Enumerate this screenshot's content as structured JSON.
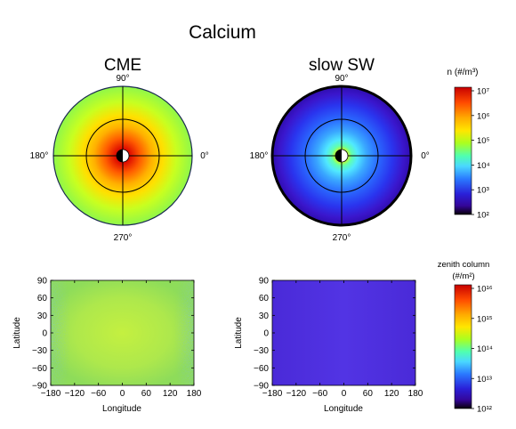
{
  "figure": {
    "title": "Calcium"
  },
  "polar_panels": [
    {
      "title": "CME",
      "angle_labels": {
        "top": "90°",
        "left": "180°",
        "right": "0°",
        "bottom": "270°"
      },
      "scenario": "CME"
    },
    {
      "title": "slow SW",
      "angle_labels": {
        "top": "90°",
        "left": "180°",
        "right": "0°",
        "bottom": "270°"
      },
      "scenario": "slow SW"
    }
  ],
  "map_panels": [
    {
      "xlabel": "Longitude",
      "ylabel": "Latitude",
      "scenario": "CME"
    },
    {
      "xlabel": "Longitude",
      "ylabel": "Latitude",
      "scenario": "slow SW"
    }
  ],
  "colorbars": [
    {
      "title": "n (#/m³)",
      "tick_labels": [
        "10⁷",
        "10⁶",
        "10⁵",
        "10⁴",
        "10³",
        "10²"
      ]
    },
    {
      "title_line1": "zenith column",
      "title_line2": "(#/m²)",
      "tick_labels": [
        "10¹⁶",
        "10¹⁵",
        "10¹⁴",
        "10¹³",
        "10¹²"
      ]
    }
  ],
  "chart_data": [
    {
      "type": "heatmap",
      "title": "CME",
      "xlabel": "Longitude",
      "ylabel": "Latitude",
      "x_ticks": [
        -180,
        -120,
        -60,
        0,
        60,
        120,
        180
      ],
      "y_ticks": [
        90,
        60,
        30,
        0,
        -30,
        -60,
        -90
      ],
      "xlim": [
        -180,
        180
      ],
      "ylim": [
        -90,
        90
      ],
      "colorbar_range": [
        "10¹²",
        "10¹⁶"
      ],
      "colormap": [
        "#1a0028",
        "#3a10c8",
        "#2a6fff",
        "#5fe8ff",
        "#7dff6a",
        "#c8ff2a",
        "#ffd400",
        "#ff6a00",
        "#d40000"
      ]
    },
    {
      "type": "heatmap",
      "title": "slow SW",
      "xlabel": "Longitude",
      "ylabel": "Latitude",
      "x_ticks": [
        -180,
        -120,
        -60,
        0,
        60,
        120,
        180
      ],
      "y_ticks": [
        90,
        60,
        30,
        0,
        -30,
        -60,
        -90
      ],
      "xlim": [
        -180,
        180
      ],
      "ylim": [
        -90,
        90
      ],
      "colorbar_range": [
        "10¹²",
        "10¹⁶"
      ],
      "colormap": [
        "#1a0028",
        "#3a10c8",
        "#2a6fff",
        "#5fe8ff",
        "#7dff6a",
        "#c8ff2a",
        "#ffd400",
        "#ff6a00",
        "#d40000"
      ]
    }
  ]
}
